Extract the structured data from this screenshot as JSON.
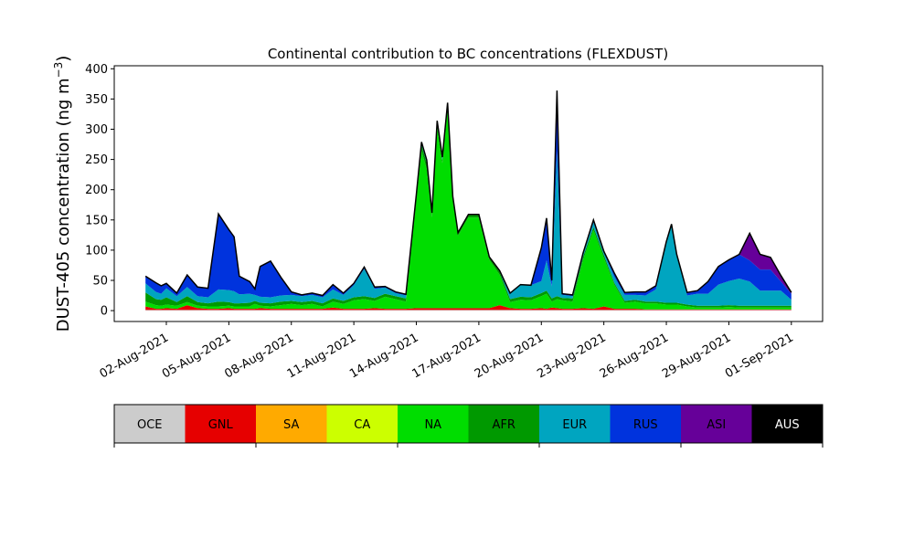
{
  "chart_data": {
    "type": "area",
    "title": "Continental contribution to BC concentrations (FLEXDUST)",
    "ylabel_prefix": "DUST-405 concentration (ng m",
    "ylabel_exponent": "−3",
    "ylabel_suffix": ")",
    "xlabel": "",
    "ylim": [
      -18,
      405
    ],
    "yticks": [
      0,
      50,
      100,
      150,
      200,
      250,
      300,
      350,
      400
    ],
    "xlim": [
      "2021-07-30T12:00",
      "2021-09-02T12:00"
    ],
    "xticks": [
      "02-Aug-2021",
      "05-Aug-2021",
      "08-Aug-2021",
      "11-Aug-2021",
      "14-Aug-2021",
      "17-Aug-2021",
      "20-Aug-2021",
      "23-Aug-2021",
      "26-Aug-2021",
      "29-Aug-2021",
      "01-Sep-2021"
    ],
    "xtick_dates": [
      "2021-08-02",
      "2021-08-05",
      "2021-08-08",
      "2021-08-11",
      "2021-08-14",
      "2021-08-17",
      "2021-08-20",
      "2021-08-23",
      "2021-08-26",
      "2021-08-29",
      "2021-09-01"
    ],
    "grid": false,
    "legend_placement": "colorbar-below",
    "x": [
      "2021-08-01T00:00",
      "2021-08-01T12:00",
      "2021-08-01T18:00",
      "2021-08-02T00:00",
      "2021-08-02T12:00",
      "2021-08-03T00:00",
      "2021-08-03T12:00",
      "2021-08-04T00:00",
      "2021-08-04T12:00",
      "2021-08-05T00:00",
      "2021-08-05T06:00",
      "2021-08-05T12:00",
      "2021-08-06T00:00",
      "2021-08-06T06:00",
      "2021-08-06T12:00",
      "2021-08-07T00:00",
      "2021-08-07T12:00",
      "2021-08-08T00:00",
      "2021-08-08T12:00",
      "2021-08-09T00:00",
      "2021-08-09T12:00",
      "2021-08-10T00:00",
      "2021-08-10T12:00",
      "2021-08-11T00:00",
      "2021-08-11T12:00",
      "2021-08-12T00:00",
      "2021-08-12T12:00",
      "2021-08-13T00:00",
      "2021-08-13T12:00",
      "2021-08-14T00:00",
      "2021-08-14T06:00",
      "2021-08-14T12:00",
      "2021-08-14T18:00",
      "2021-08-15T00:00",
      "2021-08-15T06:00",
      "2021-08-15T12:00",
      "2021-08-15T18:00",
      "2021-08-16T00:00",
      "2021-08-16T12:00",
      "2021-08-17T00:00",
      "2021-08-17T12:00",
      "2021-08-18T00:00",
      "2021-08-18T12:00",
      "2021-08-19T00:00",
      "2021-08-19T12:00",
      "2021-08-20T00:00",
      "2021-08-20T06:00",
      "2021-08-20T12:00",
      "2021-08-20T18:00",
      "2021-08-21T00:00",
      "2021-08-21T12:00",
      "2021-08-22T00:00",
      "2021-08-22T12:00",
      "2021-08-23T00:00",
      "2021-08-23T12:00",
      "2021-08-24T00:00",
      "2021-08-24T12:00",
      "2021-08-25T00:00",
      "2021-08-25T12:00",
      "2021-08-26T00:00",
      "2021-08-26T06:00",
      "2021-08-26T12:00",
      "2021-08-27T00:00",
      "2021-08-27T12:00",
      "2021-08-28T00:00",
      "2021-08-28T12:00",
      "2021-08-29T00:00",
      "2021-08-29T12:00",
      "2021-08-30T00:00",
      "2021-08-30T12:00",
      "2021-08-31T00:00",
      "2021-08-31T12:00",
      "2021-09-01T00:00"
    ],
    "series": [
      {
        "name": "OCE",
        "color": "#cccccc",
        "values": [
          1,
          1,
          1,
          1,
          1,
          1,
          1,
          1,
          1,
          1,
          1,
          1,
          1,
          1,
          1,
          1,
          1,
          1,
          1,
          1,
          1,
          1,
          1,
          1,
          1,
          1,
          1,
          1,
          1,
          1,
          1,
          1,
          1,
          1,
          1,
          1,
          1,
          1,
          1,
          1,
          1,
          1,
          1,
          1,
          1,
          1,
          1,
          1,
          1,
          1,
          1,
          1,
          1,
          1,
          1,
          1,
          1,
          1,
          1,
          1,
          1,
          1,
          1,
          1,
          1,
          1,
          1,
          1,
          1,
          1,
          1,
          1,
          1
        ]
      },
      {
        "name": "GNL",
        "color": "#e60000",
        "values": [
          6,
          2,
          2,
          3,
          2,
          8,
          3,
          2,
          2,
          3,
          2,
          2,
          2,
          2,
          3,
          2,
          2,
          2,
          2,
          2,
          2,
          4,
          2,
          2,
          2,
          3,
          2,
          2,
          2,
          3,
          3,
          3,
          3,
          3,
          3,
          3,
          3,
          3,
          3,
          3,
          3,
          8,
          3,
          2,
          2,
          3,
          2,
          4,
          3,
          2,
          2,
          3,
          2,
          6,
          2,
          2,
          2,
          1,
          1,
          1,
          1,
          1,
          1,
          1,
          1,
          1,
          1,
          1,
          1,
          1,
          1,
          1,
          1
        ]
      },
      {
        "name": "SA",
        "color": "#ffaa00",
        "values": [
          0,
          0,
          0,
          0,
          0,
          0,
          0,
          0,
          0,
          0,
          0,
          0,
          0,
          0,
          0,
          0,
          0,
          0,
          0,
          0,
          0,
          0,
          0,
          0,
          0,
          0,
          0,
          0,
          0,
          0,
          0,
          0,
          0,
          0,
          0,
          0,
          0,
          0,
          0,
          0,
          0,
          0,
          0,
          0,
          0,
          0,
          0,
          0,
          0,
          0,
          0,
          0,
          0,
          0,
          0,
          0,
          0,
          0,
          0,
          0,
          0,
          0,
          0,
          0,
          0,
          0,
          0,
          0,
          0,
          0,
          0,
          0,
          0
        ]
      },
      {
        "name": "CA",
        "color": "#ccff00",
        "values": [
          0,
          0,
          0,
          0,
          0,
          0,
          0,
          0,
          0,
          0,
          0,
          0,
          0,
          0,
          0,
          0,
          0,
          0,
          0,
          0,
          0,
          0,
          0,
          0,
          0,
          0,
          0,
          0,
          0,
          0,
          0,
          0,
          0,
          0,
          0,
          0,
          0,
          0,
          0,
          0,
          0,
          0,
          0,
          0,
          0,
          0,
          0,
          0,
          0,
          0,
          0,
          0,
          0,
          0,
          0,
          0,
          0,
          0,
          0,
          0,
          0,
          0,
          0,
          0,
          0,
          0,
          0,
          0,
          0,
          0,
          0,
          0,
          0
        ]
      },
      {
        "name": "NA",
        "color": "#00dd00",
        "values": [
          8,
          6,
          5,
          6,
          5,
          5,
          4,
          4,
          4,
          4,
          4,
          4,
          4,
          8,
          4,
          4,
          6,
          8,
          6,
          8,
          4,
          10,
          8,
          14,
          16,
          12,
          20,
          16,
          12,
          180,
          260,
          230,
          150,
          300,
          240,
          330,
          180,
          120,
          150,
          150,
          80,
          50,
          10,
          15,
          14,
          20,
          25,
          10,
          15,
          14,
          12,
          80,
          130,
          80,
          40,
          10,
          12,
          10,
          10,
          8,
          8,
          8,
          5,
          3,
          3,
          3,
          4,
          3,
          3,
          3,
          3,
          3,
          3
        ]
      },
      {
        "name": "AFR",
        "color": "#009900",
        "values": [
          15,
          10,
          10,
          12,
          6,
          10,
          6,
          5,
          8,
          6,
          5,
          5,
          6,
          5,
          5,
          5,
          6,
          5,
          5,
          5,
          5,
          5,
          5,
          5,
          5,
          5,
          5,
          5,
          5,
          8,
          10,
          10,
          8,
          5,
          5,
          5,
          5,
          5,
          5,
          5,
          5,
          5,
          5,
          5,
          5,
          5,
          5,
          5,
          5,
          4,
          5,
          5,
          5,
          5,
          3,
          3,
          3,
          3,
          3,
          3,
          3,
          3,
          3,
          3,
          3,
          3,
          3,
          3,
          3,
          3,
          3,
          3,
          3
        ]
      },
      {
        "name": "EUR",
        "color": "#00a5c0",
        "values": [
          15,
          12,
          10,
          15,
          10,
          15,
          10,
          10,
          20,
          20,
          20,
          15,
          15,
          10,
          10,
          10,
          10,
          10,
          10,
          10,
          10,
          15,
          10,
          20,
          45,
          15,
          10,
          5,
          5,
          0,
          5,
          5,
          0,
          5,
          5,
          5,
          0,
          0,
          0,
          0,
          0,
          2,
          10,
          20,
          20,
          20,
          50,
          20,
          240,
          5,
          4,
          4,
          8,
          4,
          10,
          10,
          8,
          10,
          20,
          100,
          130,
          80,
          15,
          20,
          20,
          35,
          40,
          45,
          40,
          25,
          25,
          25,
          10
        ]
      },
      {
        "name": "RUS",
        "color": "#0033dd",
        "values": [
          12,
          15,
          13,
          8,
          5,
          20,
          15,
          15,
          125,
          100,
          90,
          30,
          20,
          10,
          50,
          60,
          30,
          5,
          2,
          3,
          3,
          8,
          3,
          3,
          3,
          3,
          2,
          2,
          2,
          0,
          0,
          0,
          0,
          0,
          0,
          0,
          0,
          0,
          0,
          0,
          0,
          0,
          0,
          0,
          0,
          55,
          70,
          10,
          100,
          2,
          2,
          2,
          4,
          2,
          6,
          4,
          5,
          6,
          6,
          1,
          0,
          0,
          5,
          5,
          20,
          30,
          35,
          40,
          35,
          35,
          35,
          15,
          10
        ]
      },
      {
        "name": "ASI",
        "color": "#660099",
        "values": [
          0,
          0,
          0,
          0,
          0,
          0,
          0,
          0,
          0,
          0,
          0,
          0,
          0,
          0,
          0,
          0,
          0,
          0,
          0,
          0,
          0,
          0,
          0,
          0,
          0,
          0,
          0,
          0,
          0,
          0,
          0,
          0,
          0,
          0,
          0,
          0,
          0,
          0,
          0,
          0,
          0,
          0,
          0,
          0,
          0,
          0,
          0,
          0,
          0,
          0,
          0,
          0,
          0,
          0,
          0,
          0,
          0,
          0,
          0,
          0,
          0,
          0,
          0,
          0,
          0,
          0,
          0,
          0,
          45,
          25,
          20,
          10,
          2
        ]
      },
      {
        "name": "AUS",
        "color": "#000000",
        "values": [
          0,
          0,
          0,
          0,
          0,
          0,
          0,
          0,
          0,
          0,
          0,
          0,
          0,
          0,
          0,
          0,
          0,
          0,
          0,
          0,
          0,
          0,
          0,
          0,
          0,
          0,
          0,
          0,
          0,
          0,
          0,
          0,
          0,
          0,
          0,
          0,
          0,
          0,
          0,
          0,
          0,
          0,
          0,
          0,
          0,
          0,
          0,
          0,
          0,
          0,
          0,
          0,
          0,
          0,
          0,
          0,
          0,
          0,
          0,
          0,
          0,
          0,
          0,
          0,
          0,
          0,
          0,
          0,
          0,
          0,
          0,
          0,
          0
        ]
      }
    ],
    "total_color": "#000000"
  },
  "legend": {
    "labels": [
      "OCE",
      "GNL",
      "SA",
      "CA",
      "NA",
      "AFR",
      "EUR",
      "RUS",
      "ASI",
      "AUS"
    ],
    "colors": [
      "#cccccc",
      "#e60000",
      "#ffaa00",
      "#ccff00",
      "#00dd00",
      "#009900",
      "#00a5c0",
      "#0033dd",
      "#660099",
      "#000000"
    ],
    "text_colors": [
      "#000000",
      "#000000",
      "#000000",
      "#000000",
      "#000000",
      "#000000",
      "#000000",
      "#000000",
      "#000000",
      "#ffffff"
    ]
  }
}
